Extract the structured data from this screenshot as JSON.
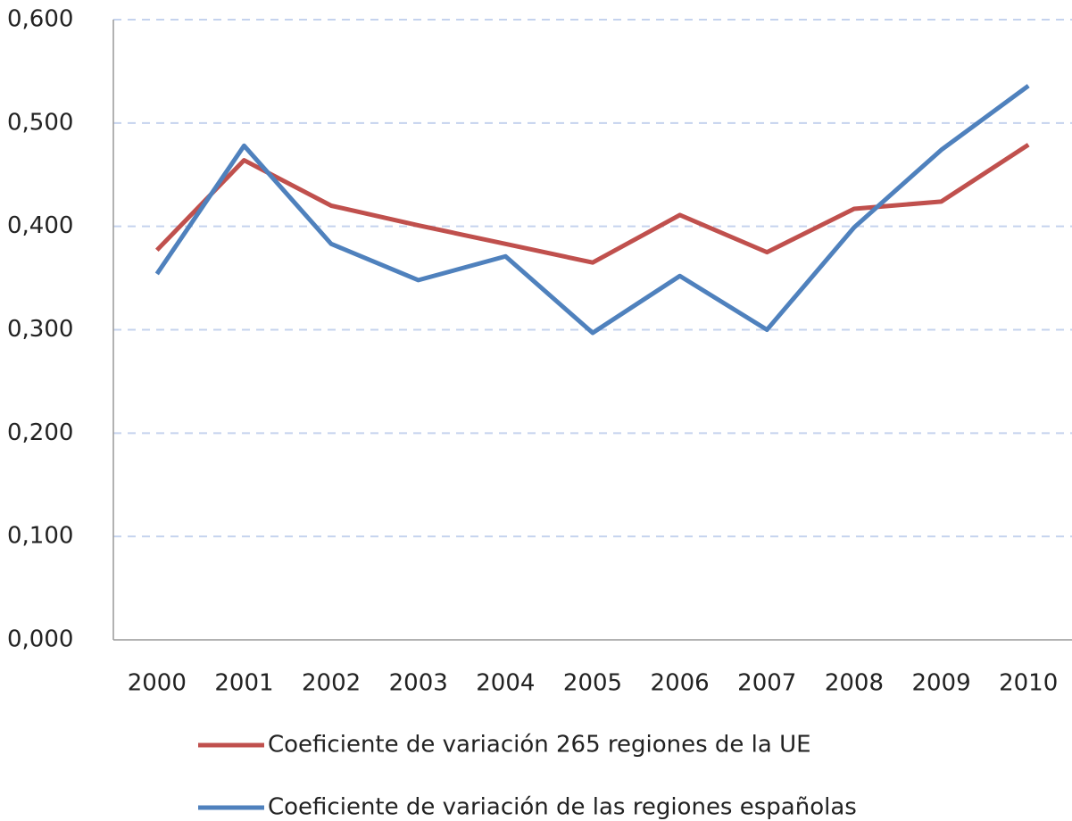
{
  "chart_data": {
    "type": "line",
    "categories": [
      "2000",
      "2001",
      "2002",
      "2003",
      "2004",
      "2005",
      "2006",
      "2007",
      "2008",
      "2009",
      "2010"
    ],
    "series": [
      {
        "name": "Coeficiente de variación 265 regiones de la UE",
        "color": "#c0504d",
        "values": [
          0.377,
          0.464,
          0.42,
          0.401,
          0.383,
          0.365,
          0.411,
          0.375,
          0.417,
          0.424,
          0.479
        ]
      },
      {
        "name": "Coeficiente de variación de las regiones españolas",
        "color": "#4f81bd",
        "values": [
          0.354,
          0.478,
          0.383,
          0.348,
          0.371,
          0.297,
          0.352,
          0.3,
          0.399,
          0.474,
          0.536
        ]
      }
    ],
    "ylim": [
      0,
      0.6
    ],
    "yticks": [
      {
        "value": 0,
        "label": "0,000"
      },
      {
        "value": 0.1,
        "label": "0,100"
      },
      {
        "value": 0.2,
        "label": "0,200"
      },
      {
        "value": 0.3,
        "label": "0,300"
      },
      {
        "value": 0.4,
        "label": "0,400"
      },
      {
        "value": 0.5,
        "label": "0,500"
      },
      {
        "value": 0.6,
        "label": "0,600"
      }
    ],
    "grid": true,
    "legend": "bottom"
  }
}
